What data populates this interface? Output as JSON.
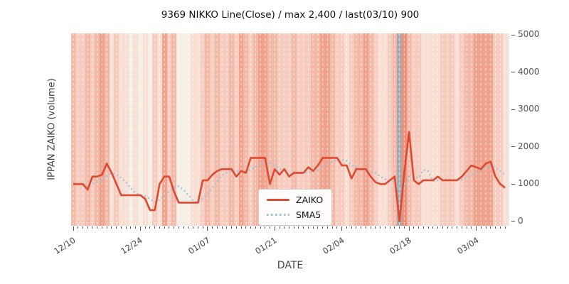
{
  "title": "9369 NIKKO Line(Close) / max 2,400 / last(03/10) 900",
  "axes": {
    "x_label": "DATE",
    "y_label": "IPPAN ZAIKO (volume)"
  },
  "legend": {
    "items": [
      {
        "label": "ZAIKO",
        "color": "#dc4a32",
        "style": "solid"
      },
      {
        "label": "SMA5",
        "color": "#9dc3dd",
        "style": "dotted"
      }
    ]
  },
  "chart_data": {
    "type": "line",
    "title": "9369 NIKKO Line(Close) / max 2,400 / last(03/10) 900",
    "xlabel": "DATE",
    "ylabel": "IPPAN ZAIKO (volume)",
    "x_start_date": "12/10",
    "x_end_date": "03/10",
    "points_are_daily": true,
    "ylim": [
      -120,
      5040
    ],
    "y_tick_values": [
      0,
      1000,
      2000,
      3000,
      4000,
      5000
    ],
    "y_tick_labels": [
      "0",
      "1000",
      "2000",
      "3000",
      "4000",
      "5000"
    ],
    "x_tick_day_indices": [
      0,
      14,
      28,
      42,
      56,
      70,
      84
    ],
    "x_tick_labels": [
      "12/10",
      "12/24",
      "01/07",
      "01/21",
      "02/04",
      "02/18",
      "03/04"
    ],
    "grid": "vertical-white-dashed-per-day",
    "legend_position": "lower-center-inside",
    "annotations": {
      "max_value": "2,400",
      "last_date": "03/10",
      "last_value": "900"
    },
    "series": [
      {
        "name": "ZAIKO",
        "color": "#dc4a32",
        "style": "solid",
        "values": [
          1000,
          1000,
          1000,
          850,
          1200,
          1200,
          1250,
          1550,
          1300,
          1000,
          700,
          700,
          700,
          700,
          700,
          600,
          300,
          300,
          1000,
          1200,
          1200,
          800,
          500,
          500,
          500,
          500,
          500,
          1100,
          1100,
          1250,
          1350,
          1400,
          1400,
          1400,
          1200,
          1350,
          1300,
          1700,
          1700,
          1700,
          1700,
          1000,
          1400,
          1250,
          1400,
          1200,
          1300,
          1300,
          1300,
          1450,
          1350,
          1500,
          1700,
          1700,
          1700,
          1700,
          1500,
          1500,
          1150,
          1400,
          1400,
          1400,
          1200,
          1050,
          1000,
          1000,
          1100,
          1200,
          0,
          1300,
          2400,
          1100,
          1000,
          1100,
          1100,
          1100,
          1200,
          1100,
          1100,
          1100,
          1100,
          1200,
          1350,
          1500,
          1450,
          1400,
          1550,
          1600,
          1200,
          1000,
          900
        ]
      },
      {
        "name": "SMA5",
        "color": "#9dc3dd",
        "style": "dotted",
        "derived": "trailing 5-day moving average of ZAIKO, plotted from 5th point"
      }
    ],
    "background_heat": {
      "description": "one vertical stripe per day, red intensity scale; -1 = gray highlight stripe (02/16)",
      "palette": [
        "#f4eee4",
        "#f9ded4",
        "#f7ccbe",
        "#f4b8a7",
        "#f1a28d",
        "#ee8f79"
      ],
      "gray_color": "#a6a9ae",
      "levels": [
        3,
        2,
        2,
        3,
        2,
        3,
        4,
        3,
        1,
        2,
        1,
        1,
        0,
        1,
        0,
        1,
        0,
        2,
        1,
        4,
        2,
        3,
        0,
        0,
        0,
        1,
        1,
        2,
        3,
        2,
        3,
        2,
        2,
        3,
        2,
        4,
        3,
        2,
        3,
        4,
        4,
        3,
        3,
        2,
        2,
        2,
        3,
        2,
        2,
        2,
        3,
        3,
        4,
        4,
        3,
        2,
        2,
        1,
        2,
        3,
        3,
        4,
        3,
        2,
        1,
        1,
        2,
        3,
        -1,
        5,
        3,
        2,
        2,
        1,
        1,
        1,
        1,
        2,
        2,
        2,
        1,
        2,
        3,
        3,
        4,
        4,
        4,
        4,
        2,
        2,
        1
      ]
    }
  },
  "colors": {
    "figure_background": "#ffffff",
    "plot_background": "#e9e9e9",
    "gridline": "#ffffff",
    "tick": "#555555",
    "title_text": "#111111",
    "axis_text": "#444444"
  }
}
